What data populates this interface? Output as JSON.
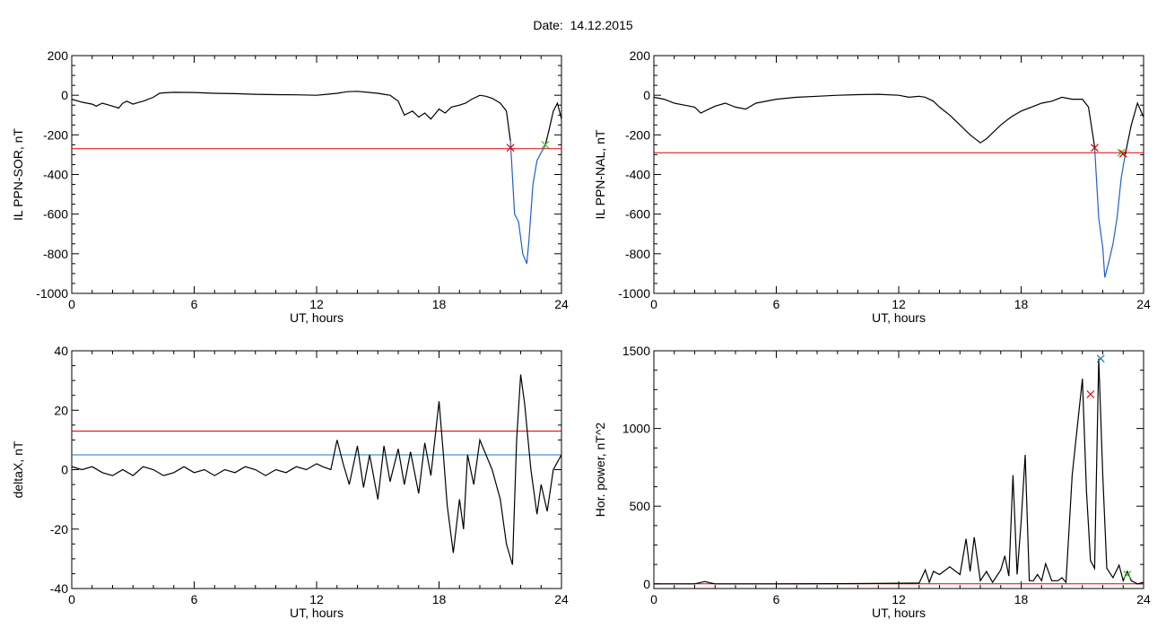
{
  "page": {
    "title": "Date:  14.12.2015"
  },
  "colors": {
    "trace": "#000000",
    "threshold": "#e00000",
    "secondary": "#1f77b4",
    "highlight": "#1f5fd0",
    "marker_green": "#44bb22"
  },
  "chart_data": [
    {
      "id": "sor",
      "type": "line",
      "title": "",
      "xlabel": "UT, hours",
      "ylabel": "IL PPN-SOR, nT",
      "xlim": [
        0,
        24
      ],
      "ylim": [
        -1000,
        200
      ],
      "xticks": [
        0,
        6,
        12,
        18,
        24
      ],
      "yticks": [
        -1000,
        -800,
        -600,
        -400,
        -200,
        0,
        200
      ],
      "series": [
        {
          "color": "#000000",
          "x": [
            0,
            0.5,
            1,
            1.2,
            1.5,
            2,
            2.3,
            2.5,
            2.7,
            3,
            3.3,
            3.5,
            4,
            4.3,
            4.5,
            5,
            6,
            7,
            8,
            9,
            10,
            11,
            12,
            12.5,
            13,
            13.5,
            14,
            14.5,
            15,
            15.3,
            15.6,
            16,
            16.3,
            16.7,
            17,
            17.3,
            17.6,
            18,
            18.3,
            18.6,
            19,
            19.3,
            19.6,
            20,
            20.3,
            20.6,
            21,
            21.3,
            21.5
          ],
          "y": [
            -20,
            -35,
            -45,
            -55,
            -40,
            -55,
            -65,
            -40,
            -30,
            -45,
            -35,
            -30,
            -10,
            10,
            12,
            15,
            14,
            10,
            8,
            5,
            3,
            2,
            0,
            5,
            10,
            18,
            20,
            15,
            10,
            5,
            0,
            -30,
            -100,
            -80,
            -110,
            -90,
            -120,
            -70,
            -90,
            -60,
            -50,
            -40,
            -20,
            0,
            -5,
            -15,
            -40,
            -80,
            -230
          ]
        },
        {
          "color": "#1f5fd0",
          "x": [
            21.5,
            21.7,
            21.8,
            21.9,
            22,
            22.1,
            22.3,
            22.4,
            22.6,
            22.8,
            23,
            23.2
          ],
          "y": [
            -230,
            -600,
            -620,
            -640,
            -720,
            -800,
            -850,
            -740,
            -450,
            -330,
            -290,
            -255
          ]
        },
        {
          "color": "#000000",
          "x": [
            23.2,
            23.4,
            23.6,
            23.8,
            24
          ],
          "y": [
            -255,
            -170,
            -80,
            -40,
            -120
          ]
        }
      ],
      "hlines": [
        {
          "y": -270,
          "color": "#e00000"
        }
      ],
      "markers": [
        {
          "x": 21.5,
          "y": -265,
          "color": "#e00000"
        },
        {
          "x": 23.2,
          "y": -250,
          "color": "#44bb22"
        }
      ]
    },
    {
      "id": "nal",
      "type": "line",
      "title": "",
      "xlabel": "UT, hours",
      "ylabel": "IL PPN-NAL, nT",
      "xlim": [
        0,
        24
      ],
      "ylim": [
        -1000,
        200
      ],
      "xticks": [
        0,
        6,
        12,
        18,
        24
      ],
      "yticks": [
        -1000,
        -800,
        -600,
        -400,
        -200,
        0,
        200
      ],
      "series": [
        {
          "color": "#000000",
          "x": [
            0,
            0.5,
            1,
            1.5,
            2,
            2.3,
            2.7,
            3,
            3.5,
            4,
            4.5,
            5,
            6,
            7,
            8,
            9,
            10,
            11,
            12,
            12.5,
            13,
            13.3,
            13.7,
            14,
            14.5,
            15,
            15.5,
            16,
            16.3,
            16.7,
            17,
            17.5,
            18,
            18.5,
            19,
            19.5,
            20,
            20.5,
            21,
            21.3,
            21.6
          ],
          "y": [
            -10,
            -20,
            -40,
            -50,
            -60,
            -90,
            -70,
            -55,
            -40,
            -60,
            -70,
            -40,
            -20,
            -10,
            -5,
            0,
            3,
            5,
            0,
            -10,
            -5,
            -10,
            -30,
            -60,
            -100,
            -150,
            -200,
            -240,
            -220,
            -180,
            -150,
            -110,
            -80,
            -60,
            -40,
            -30,
            -10,
            -20,
            -20,
            -60,
            -260
          ]
        },
        {
          "color": "#1f5fd0",
          "x": [
            21.6,
            21.8,
            22,
            22.1,
            22.3,
            22.5,
            22.7,
            22.9,
            23.1
          ],
          "y": [
            -260,
            -620,
            -770,
            -920,
            -840,
            -750,
            -620,
            -420,
            -300
          ]
        },
        {
          "color": "#000000",
          "x": [
            23.1,
            23.4,
            23.7,
            24
          ],
          "y": [
            -300,
            -150,
            -40,
            -110
          ]
        }
      ],
      "hlines": [
        {
          "y": -290,
          "color": "#e00000"
        }
      ],
      "markers": [
        {
          "x": 21.6,
          "y": -265,
          "color": "#e00000"
        },
        {
          "x": 22.9,
          "y": -290,
          "color": "#44bb22"
        },
        {
          "x": 23.0,
          "y": -295,
          "color": "#e00000"
        }
      ]
    },
    {
      "id": "deltax",
      "type": "line",
      "title": "",
      "xlabel": "UT, hours",
      "ylabel": "deltaX, nT",
      "xlim": [
        0,
        24
      ],
      "ylim": [
        -40,
        40
      ],
      "xticks": [
        0,
        6,
        12,
        18,
        24
      ],
      "yticks": [
        -40,
        -20,
        0,
        20,
        40
      ],
      "series": [
        {
          "color": "#000000",
          "x": [
            0,
            0.5,
            1,
            1.5,
            2,
            2.5,
            3,
            3.5,
            4,
            4.5,
            5,
            5.5,
            6,
            6.5,
            7,
            7.5,
            8,
            8.5,
            9,
            9.5,
            10,
            10.5,
            11,
            11.5,
            12,
            12.3,
            12.7,
            13,
            13.3,
            13.6,
            14,
            14.3,
            14.6,
            15,
            15.3,
            15.6,
            16,
            16.3,
            16.6,
            17,
            17.3,
            17.6,
            18,
            18.2,
            18.4,
            18.7,
            19,
            19.2,
            19.4,
            19.7,
            20,
            20.3,
            20.6,
            21,
            21.3,
            21.6,
            21.8,
            22,
            22.2,
            22.5,
            22.8,
            23,
            23.3,
            23.6,
            24
          ],
          "y": [
            1,
            0,
            1,
            -1,
            -2,
            0,
            -2,
            1,
            0,
            -2,
            -1,
            1,
            -1,
            0,
            -2,
            0,
            -1,
            1,
            0,
            -2,
            0,
            -1,
            1,
            0,
            2,
            1,
            0,
            10,
            2,
            -5,
            8,
            -6,
            5,
            -10,
            8,
            -4,
            7,
            -5,
            6,
            -8,
            9,
            -2,
            23,
            6,
            -12,
            -28,
            -10,
            -20,
            5,
            -5,
            10,
            5,
            0,
            -10,
            -25,
            -32,
            10,
            32,
            22,
            0,
            -15,
            -5,
            -14,
            0,
            5
          ]
        }
      ],
      "hlines": [
        {
          "y": 13,
          "color": "#e00000"
        },
        {
          "y": 5,
          "color": "#1f77b4"
        }
      ],
      "markers": []
    },
    {
      "id": "power",
      "type": "line",
      "title": "",
      "xlabel": "UT, hours",
      "ylabel": "Hor. power, nT^2",
      "xlim": [
        0,
        24
      ],
      "ylim": [
        -30,
        1500
      ],
      "xticks": [
        0,
        6,
        12,
        18,
        24
      ],
      "yticks": [
        0,
        500,
        1000,
        1500
      ],
      "series": [
        {
          "color": "#000000",
          "x": [
            0,
            2,
            2.5,
            2.8,
            3,
            6,
            10,
            13,
            13.3,
            13.5,
            13.7,
            14,
            14.5,
            15,
            15.3,
            15.5,
            15.7,
            16,
            16.3,
            16.6,
            17,
            17.2,
            17.4,
            17.6,
            17.8,
            18,
            18.2,
            18.4,
            18.6,
            18.8,
            19,
            19.2,
            19.5,
            19.8,
            20,
            20.2,
            20.5,
            21,
            21.2,
            21.4,
            21.6,
            21.8,
            22,
            22.2,
            22.5,
            22.8,
            23,
            23.2,
            23.4,
            23.7,
            24
          ],
          "y": [
            0,
            0,
            15,
            5,
            0,
            0,
            2,
            5,
            90,
            10,
            80,
            60,
            110,
            60,
            290,
            80,
            300,
            20,
            80,
            10,
            90,
            180,
            50,
            700,
            60,
            400,
            830,
            20,
            20,
            60,
            20,
            130,
            20,
            20,
            40,
            10,
            700,
            1320,
            600,
            150,
            100,
            1450,
            700,
            100,
            40,
            120,
            20,
            80,
            20,
            0,
            10
          ]
        }
      ],
      "hlines": [
        {
          "y": 0,
          "color": "#e00000"
        }
      ],
      "markers": [
        {
          "x": 21.4,
          "y": 1220,
          "color": "#e00000"
        },
        {
          "x": 21.9,
          "y": 1450,
          "color": "#1f77b4"
        },
        {
          "x": 23.2,
          "y": 60,
          "color": "#44bb22"
        }
      ]
    }
  ]
}
